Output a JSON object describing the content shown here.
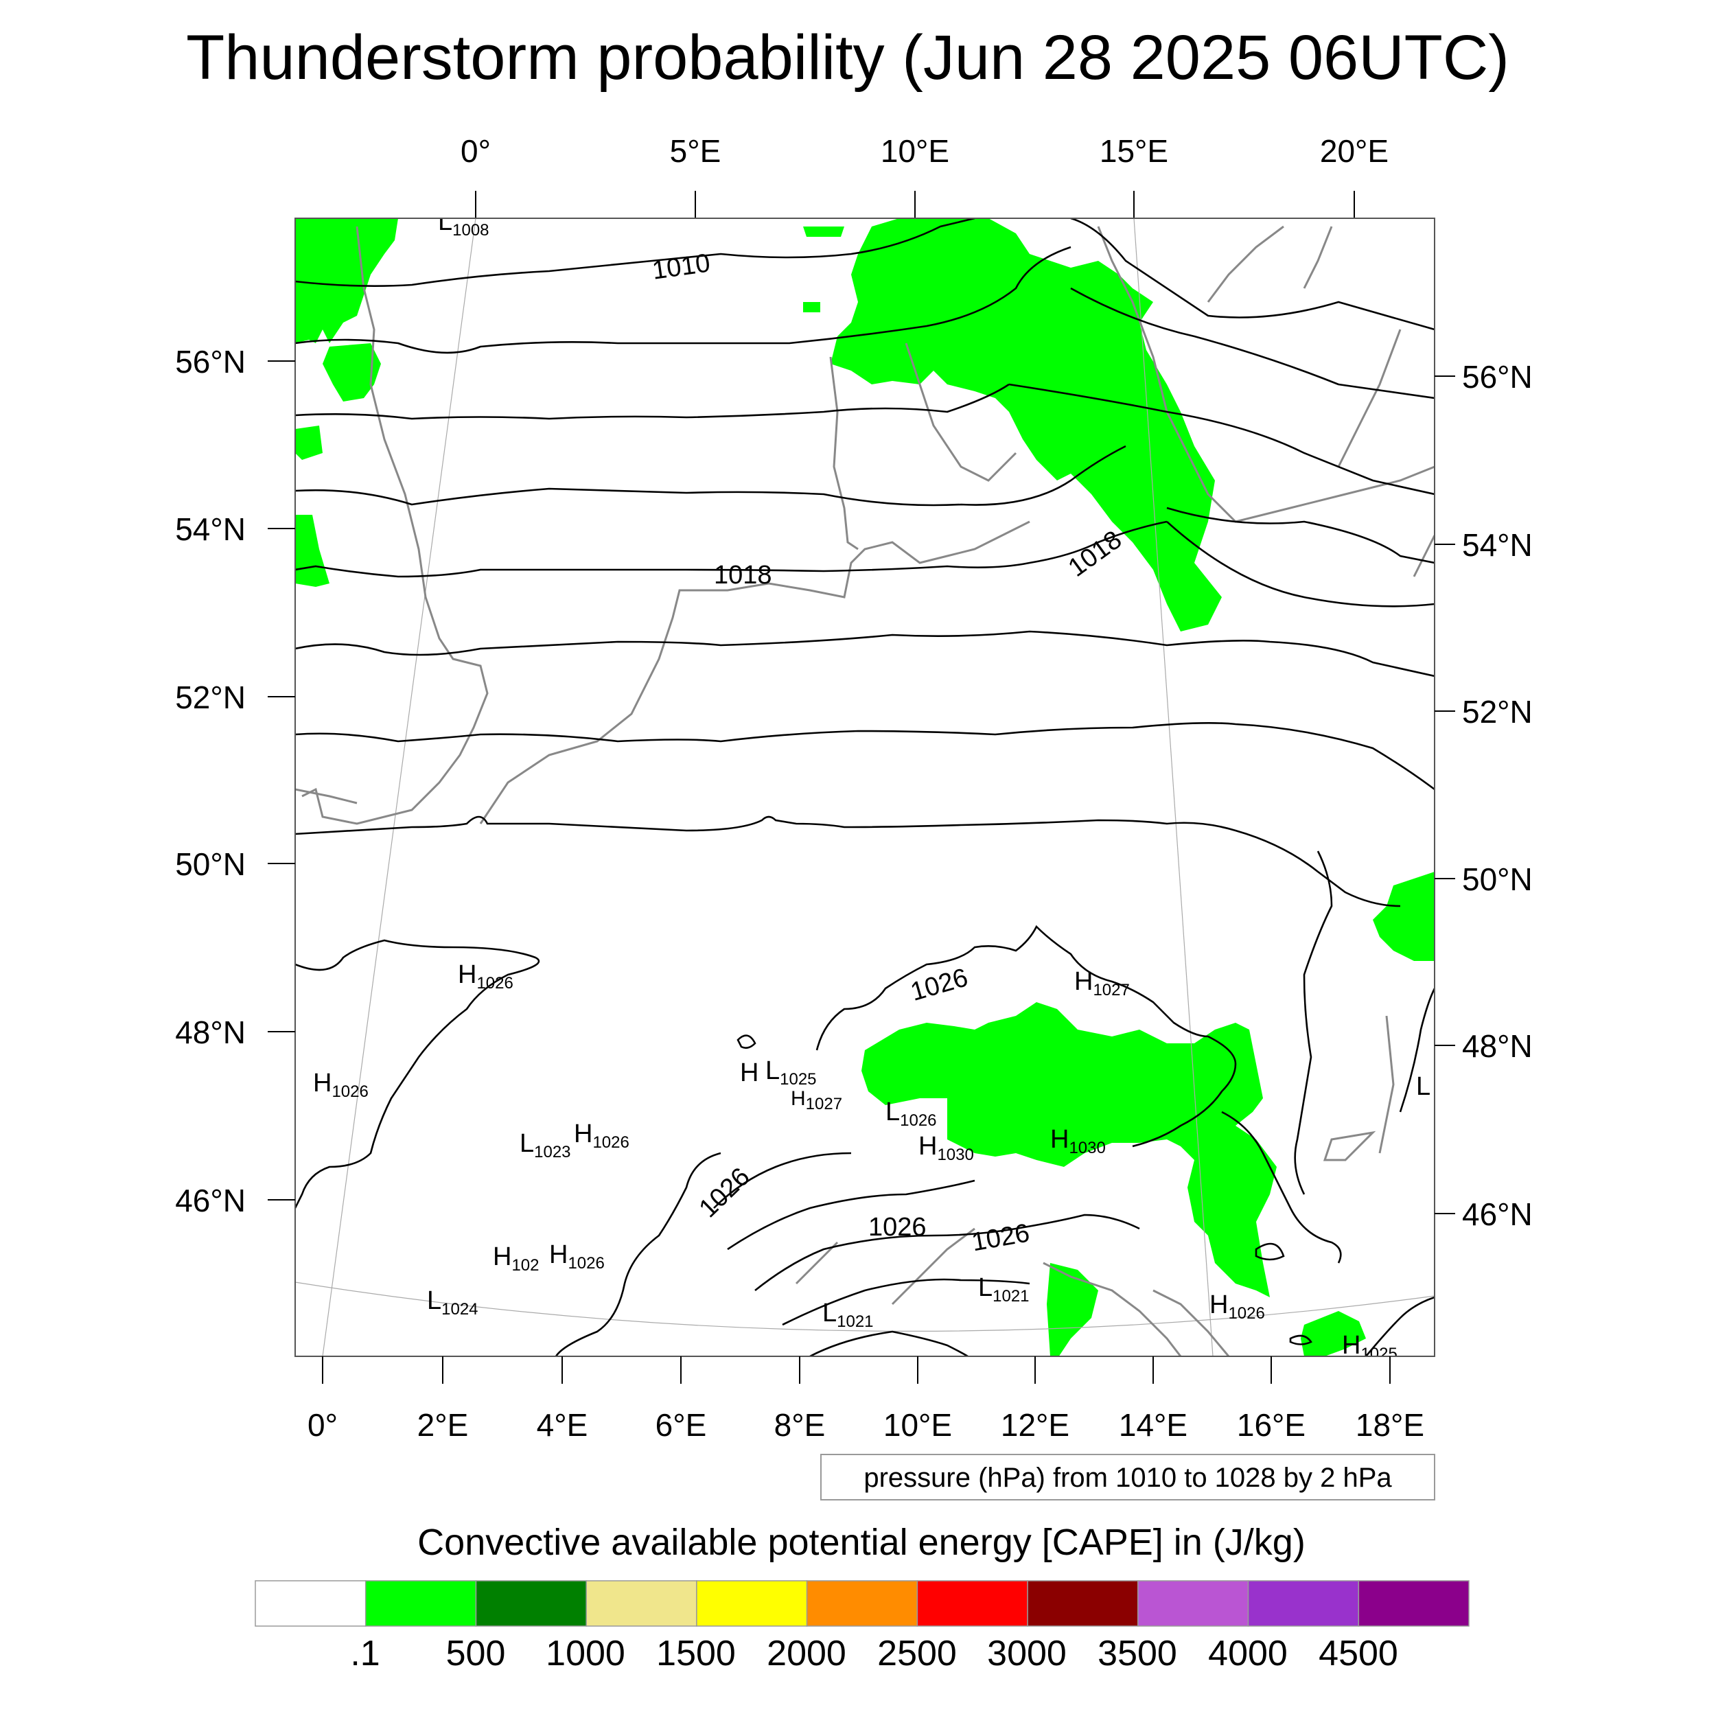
{
  "title": "Thunderstorm probability (Jun 28 2025 06UTC)",
  "top_lon_labels": [
    "0°",
    "5°E",
    "10°E",
    "15°E",
    "20°E"
  ],
  "bottom_lon_labels": [
    "0°",
    "2°E",
    "4°E",
    "6°E",
    "8°E",
    "10°E",
    "12°E",
    "14°E",
    "16°E",
    "18°E"
  ],
  "left_lat_labels": [
    "56°N",
    "54°N",
    "52°N",
    "50°N",
    "48°N",
    "46°N"
  ],
  "right_lat_labels": [
    "56°N",
    "54°N",
    "52°N",
    "50°N",
    "48°N",
    "46°N"
  ],
  "isobar_labels": [
    "1010",
    "1018",
    "1026",
    "1018",
    "1026",
    "1026",
    "1026"
  ],
  "pressure_centers": [
    {
      "kind": "L",
      "value": "1008"
    },
    {
      "kind": "H",
      "value": "1026"
    },
    {
      "kind": "H",
      "value": "1026"
    },
    {
      "kind": "H",
      "value": "1027"
    },
    {
      "kind": "H",
      "value": ""
    },
    {
      "kind": "L",
      "value": "1025"
    },
    {
      "kind": "H",
      "value": "1027"
    },
    {
      "kind": "L",
      "value": "1026"
    },
    {
      "kind": "H",
      "value": "1030"
    },
    {
      "kind": "H",
      "value": "1030"
    },
    {
      "kind": "L",
      "value": "1023"
    },
    {
      "kind": "H",
      "value": "1026"
    },
    {
      "kind": "H",
      "value": "102"
    },
    {
      "kind": "H",
      "value": "1026"
    },
    {
      "kind": "L",
      "value": "1024"
    },
    {
      "kind": "L",
      "value": "1021"
    },
    {
      "kind": "L",
      "value": "1021"
    },
    {
      "kind": "H",
      "value": "1026"
    },
    {
      "kind": "H",
      "value": "1025"
    },
    {
      "kind": "L",
      "value": ""
    }
  ],
  "contour_info": "pressure (hPa) from 1010 to 1028 by 2 hPa",
  "colorbar": {
    "title": "Convective available potential energy [CAPE] in (J/kg)",
    "colors": [
      "#ffffff",
      "#00ff00",
      "#008000",
      "#f0e68c",
      "#ffff00",
      "#ff8c00",
      "#ff0000",
      "#8b0000",
      "#ba55d3",
      "#9932cc",
      "#8b008b"
    ],
    "labels": [
      ".1",
      "500",
      "1000",
      "1500",
      "2000",
      "2500",
      "3000",
      "3500",
      "4000",
      "4500"
    ]
  },
  "colors": {
    "cape_green": "#00ff00",
    "coastline": "#888888",
    "isobar": "#000000"
  }
}
